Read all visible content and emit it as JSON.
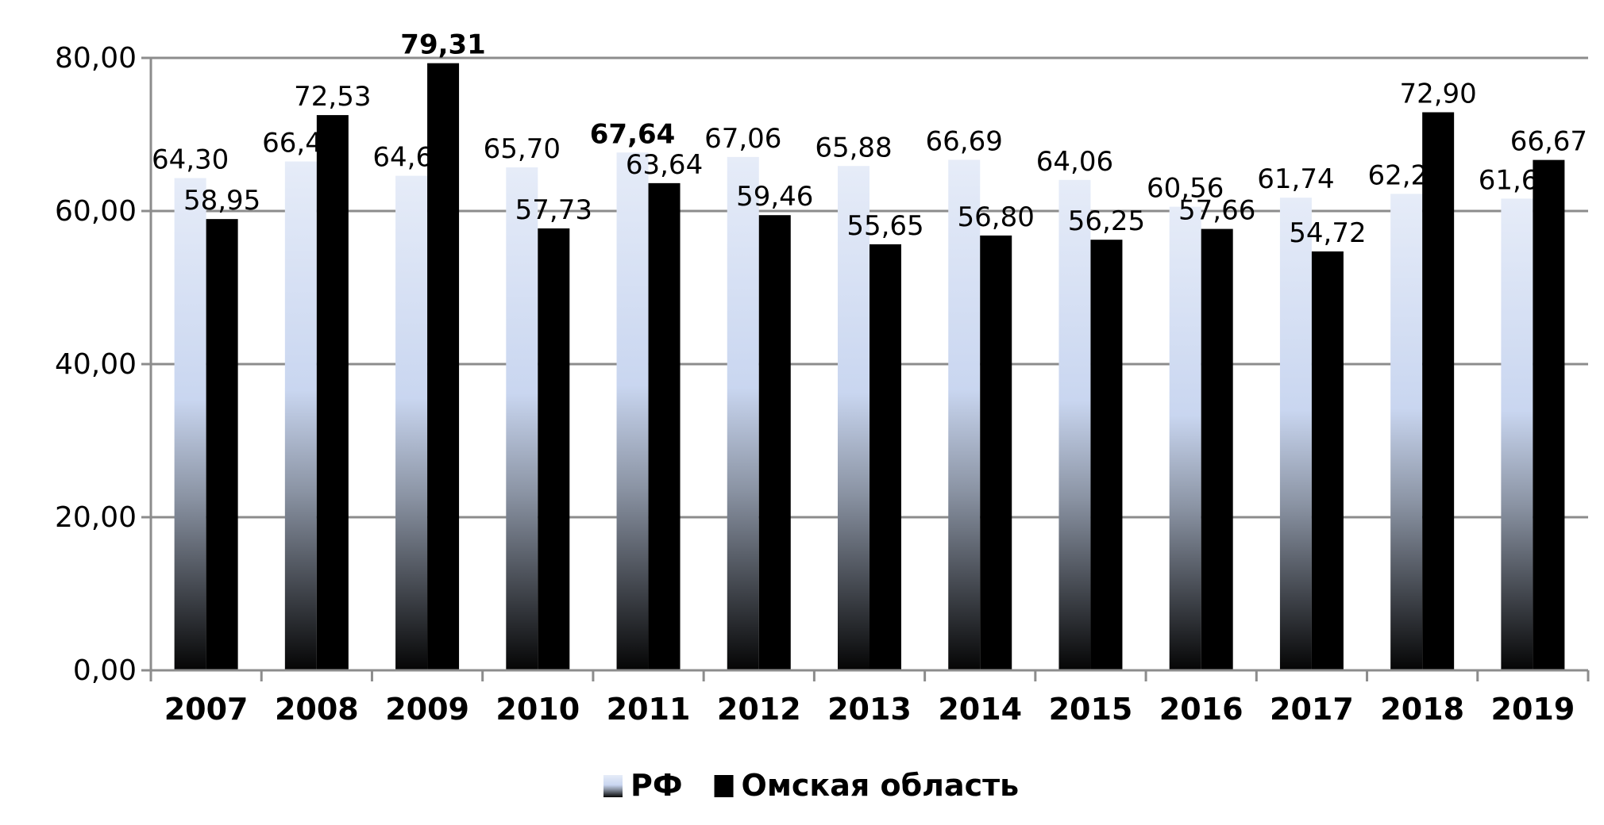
{
  "chart_data": {
    "type": "bar",
    "categories": [
      "2007",
      "2008",
      "2009",
      "2010",
      "2011",
      "2012",
      "2013",
      "2014",
      "2015",
      "2016",
      "2017",
      "2018",
      "2019"
    ],
    "series": [
      {
        "name": "РФ",
        "values": [
          64.3,
          66.47,
          64.6,
          65.7,
          67.64,
          67.06,
          65.88,
          66.69,
          64.06,
          60.56,
          61.74,
          62.24,
          61.62
        ],
        "labels": [
          "64,30",
          "66,47",
          "64,60",
          "65,70",
          "67,64",
          "67,06",
          "65,88",
          "66,69",
          "64,06",
          "60,56",
          "61,74",
          "62,24",
          "61,62"
        ],
        "bold": [
          false,
          false,
          false,
          false,
          true,
          false,
          false,
          false,
          false,
          false,
          false,
          false,
          false
        ],
        "color": "#d6e0f5"
      },
      {
        "name": "Омская область",
        "values": [
          58.95,
          72.53,
          79.31,
          57.73,
          63.64,
          59.46,
          55.65,
          56.8,
          56.25,
          57.66,
          54.72,
          72.9,
          66.67
        ],
        "labels": [
          "58,95",
          "72,53",
          "79,31",
          "57,73",
          "63,64",
          "59,46",
          "55,65",
          "56,80",
          "56,25",
          "57,66",
          "54,72",
          "72,90",
          "66,67"
        ],
        "bold": [
          false,
          false,
          true,
          false,
          false,
          false,
          false,
          false,
          false,
          false,
          false,
          false,
          false
        ],
        "color": "#000000"
      }
    ],
    "y_ticks": [
      "0,00",
      "20,00",
      "40,00",
      "60,00",
      "80,00"
    ],
    "ylim": [
      0,
      80
    ],
    "grid": true,
    "legend": "bottom",
    "title": "",
    "xlabel": "",
    "ylabel": ""
  }
}
